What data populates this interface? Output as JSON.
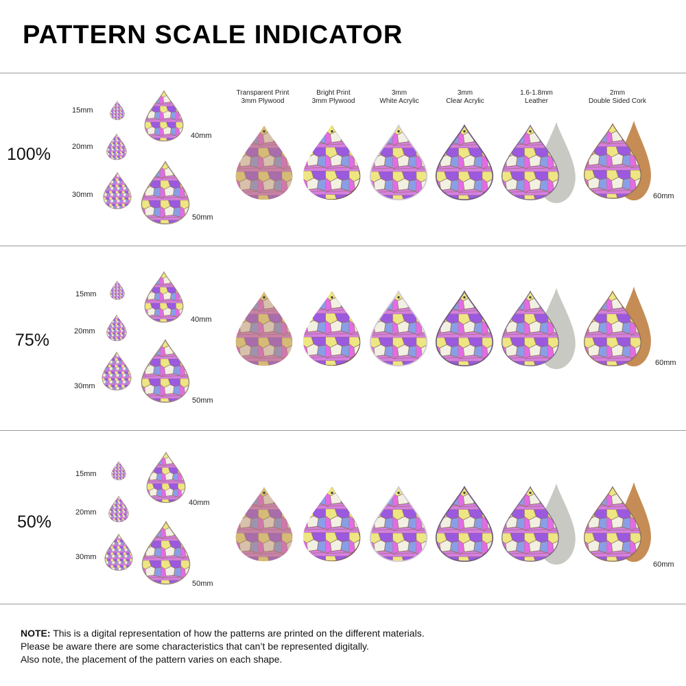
{
  "title": "PATTERN SCALE INDICATOR",
  "materials": [
    {
      "line1": "Transparent Print",
      "line2": "3mm Plywood"
    },
    {
      "line1": "Bright Print",
      "line2": "3mm Plywood"
    },
    {
      "line1": "3mm",
      "line2": "White Acrylic"
    },
    {
      "line1": "3mm",
      "line2": "Clear Acrylic"
    },
    {
      "line1": "1.6-1.8mm",
      "line2": "Leather"
    },
    {
      "line1": "2mm",
      "line2": "Double Sided Cork"
    }
  ],
  "rows": [
    {
      "scale": "100%",
      "sizes": {
        "s15": "15mm",
        "s20": "20mm",
        "s30": "30mm",
        "s40": "40mm",
        "s50": "50mm"
      },
      "big_size": "60mm"
    },
    {
      "scale": "75%",
      "sizes": {
        "s15": "15mm",
        "s20": "20mm",
        "s30": "30mm",
        "s40": "40mm",
        "s50": "50mm"
      },
      "big_size": "60mm"
    },
    {
      "scale": "50%",
      "sizes": {
        "s15": "15mm",
        "s20": "20mm",
        "s30": "30mm",
        "s40": "40mm",
        "s50": "50mm"
      },
      "big_size": "60mm"
    }
  ],
  "note": {
    "label": "NOTE:",
    "line1": " This is a digital representation of how the patterns are printed on the different materials.",
    "line2": "Please be aware there are some characteristics that can’t be represented digitally.",
    "line3": "Also note, the placement of the pattern varies on each shape."
  },
  "colors": {
    "plywood": "#b8876a",
    "leather_back": "#c9c9c4",
    "cork_back": "#c58d55",
    "purple": "#9b59e0",
    "pink": "#e46be4",
    "yellow": "#eee682",
    "blue": "#8a9ee8"
  }
}
